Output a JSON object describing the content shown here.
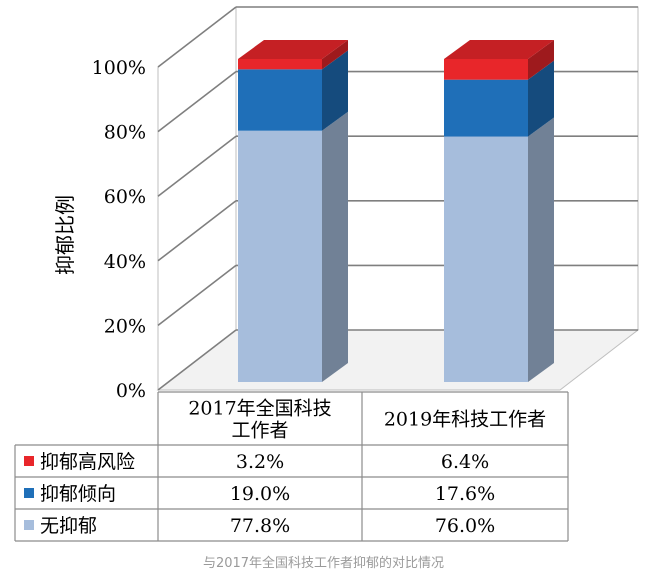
{
  "chart_data": {
    "type": "bar",
    "stacked": true,
    "three_d": true,
    "ylabel": "抑郁比例",
    "ylim": [
      0,
      100
    ],
    "yticks": [
      "0%",
      "20%",
      "40%",
      "60%",
      "80%",
      "100%"
    ],
    "grid": true,
    "categories": [
      "2017年全国科技工作者",
      "2019年科技工作者"
    ],
    "category_lines": [
      [
        "2017年全国科技",
        "工作者"
      ],
      [
        "2019年科技工作者"
      ]
    ],
    "series": [
      {
        "name": "无抑郁",
        "color": "#a6bddc",
        "values": [
          77.8,
          76.0
        ],
        "labels": [
          "77.8%",
          "76.0%"
        ]
      },
      {
        "name": "抑郁倾向",
        "color": "#1f6fb8",
        "values": [
          19.0,
          17.6
        ],
        "labels": [
          "19.0%",
          "17.6%"
        ]
      },
      {
        "name": "抑郁高风险",
        "color": "#e8262a",
        "values": [
          3.2,
          6.4
        ],
        "labels": [
          "3.2%",
          "6.4%"
        ]
      }
    ],
    "table_order": [
      "抑郁高风险",
      "抑郁倾向",
      "无抑郁"
    ],
    "legend": "data-table"
  },
  "caption": "与2017年全国科技工作者抑郁的对比情况"
}
